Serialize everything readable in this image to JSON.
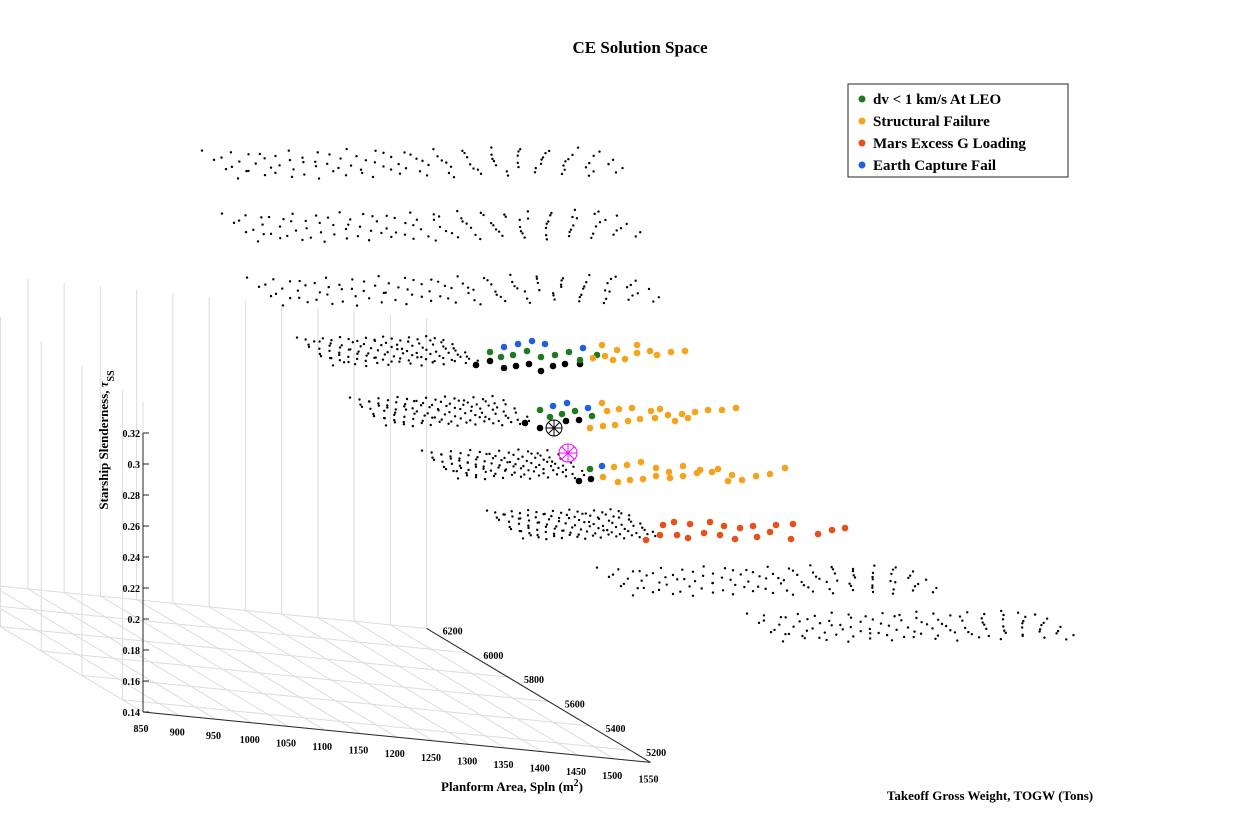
{
  "chart_data": {
    "type": "scatter",
    "title": "CE Solution Space",
    "xlabel": "Planform Area, Spln (m²)",
    "ylabel": "Takeoff Gross Weight, TOGW (Tons)",
    "zlabel": "Starship Slenderness, τSS",
    "xlim": [
      850,
      1550
    ],
    "ylim": [
      5100,
      6200
    ],
    "zlim": [
      0.14,
      0.32
    ],
    "x_ticks": [
      "850",
      "900",
      "950",
      "1000",
      "1050",
      "1100",
      "1150",
      "1200",
      "1250",
      "1300",
      "1350",
      "1400",
      "1450",
      "1500",
      "1550"
    ],
    "y_ticks": [
      "5200",
      "5400",
      "5600",
      "5800",
      "6000",
      "6200"
    ],
    "z_ticks": [
      "0.14",
      "0.16",
      "0.18",
      "0.2",
      "0.22",
      "0.24",
      "0.26",
      "0.28",
      "0.3",
      "0.32"
    ],
    "grid": true,
    "legend_position": "top-right",
    "legend": [
      {
        "label": "dv < 1 km/s At LEO",
        "color": "#1f7a1f"
      },
      {
        "label": "Structural Failure",
        "color": "#f5a31a"
      },
      {
        "label": "Mars Excess G Loading",
        "color": "#e8501a"
      },
      {
        "label": "Earth Capture Fail",
        "color": "#2060e0"
      }
    ],
    "point_color": "#000000",
    "selected_marker_color": "#000000",
    "highlight_marker_color": "#ff00ff"
  }
}
